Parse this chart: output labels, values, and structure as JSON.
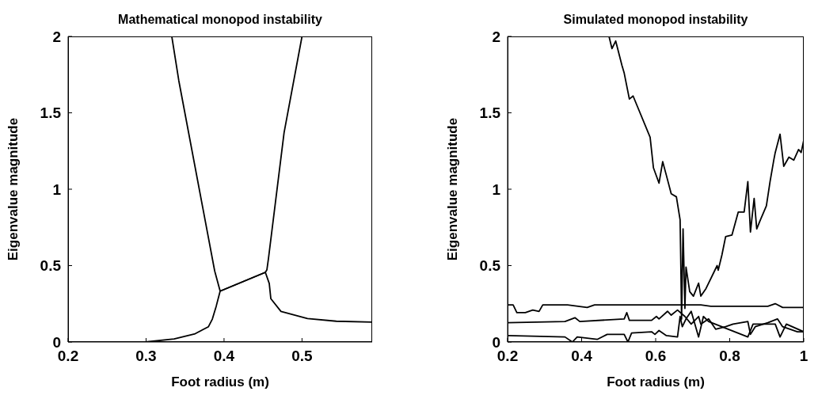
{
  "chart_data": [
    {
      "type": "line",
      "title": "Mathematical monopod instability",
      "xlabel": "Foot radius (m)",
      "ylabel": "Eigenvalue magnitude",
      "xlim": [
        0.2,
        0.59
      ],
      "ylim": [
        0,
        2
      ],
      "xticks": [
        0.2,
        0.3,
        0.4,
        0.5
      ],
      "yticks": [
        0,
        0.5,
        1,
        1.5,
        2
      ],
      "series": [
        {
          "color": "#000000",
          "x": [
            0.333,
            0.342,
            0.388,
            0.395,
            0.453,
            0.455,
            0.457,
            0.477,
            0.5
          ],
          "values": [
            2,
            1.71,
            0.465,
            0.333,
            0.456,
            0.473,
            0.547,
            1.37,
            2
          ]
        },
        {
          "color": "#000000",
          "x": [
            0.2,
            0.299,
            0.336,
            0.363,
            0.38,
            0.385,
            0.39,
            0.395,
            0.453,
            0.458,
            0.46,
            0.473,
            0.507,
            0.544,
            0.59
          ],
          "values": [
            0,
            0,
            0.02,
            0.054,
            0.1,
            0.15,
            0.235,
            0.333,
            0.456,
            0.383,
            0.284,
            0.2,
            0.153,
            0.136,
            0.13
          ]
        }
      ]
    },
    {
      "type": "line",
      "title": "Simulated monopod instability",
      "xlabel": "Foot radius (m)",
      "ylabel": "Eigenvalue magnitude",
      "xlim": [
        0.2,
        1
      ],
      "ylim": [
        0,
        2
      ],
      "xticks": [
        0.2,
        0.4,
        0.6,
        0.8,
        1
      ],
      "yticks": [
        0,
        0.5,
        1,
        1.5,
        2
      ],
      "series": [
        {
          "color": "#000000",
          "x": [
            0.474,
            0.482,
            0.492,
            0.509,
            0.515,
            0.529,
            0.539,
            0.585,
            0.594,
            0.609,
            0.619,
            0.629,
            0.642,
            0.656,
            0.666,
            0.668,
            0.67,
            0.674,
            0.679,
            0.682,
            0.692,
            0.702,
            0.716,
            0.722,
            0.736,
            0.766,
            0.769,
            0.779,
            0.789,
            0.806,
            0.823,
            0.839,
            0.849,
            0.856,
            0.866,
            0.873,
            0.883,
            0.899,
            0.909,
            0.919,
            0.923,
            0.936,
            0.946,
            0.96,
            0.973,
            0.986,
            0.993,
            1.0
          ],
          "values": [
            2,
            1.92,
            1.97,
            1.81,
            1.76,
            1.59,
            1.61,
            1.34,
            1.14,
            1.04,
            1.18,
            1.09,
            0.97,
            0.95,
            0.8,
            0.5,
            0.15,
            0.74,
            0.22,
            0.49,
            0.33,
            0.3,
            0.385,
            0.3,
            0.35,
            0.5,
            0.47,
            0.57,
            0.69,
            0.7,
            0.85,
            0.85,
            1.05,
            0.72,
            0.94,
            0.74,
            0.8,
            0.89,
            1.05,
            1.19,
            1.24,
            1.36,
            1.15,
            1.21,
            1.19,
            1.26,
            1.24,
            1.32
          ]
        },
        {
          "color": "#000000",
          "x": [
            0.2,
            0.215,
            0.225,
            0.248,
            0.268,
            0.285,
            0.295,
            0.362,
            0.415,
            0.435,
            0.602,
            0.722,
            0.749,
            0.903,
            0.923,
            0.943,
            1.0
          ],
          "values": [
            0.243,
            0.243,
            0.192,
            0.192,
            0.209,
            0.2,
            0.243,
            0.243,
            0.226,
            0.243,
            0.243,
            0.243,
            0.234,
            0.234,
            0.251,
            0.226,
            0.226
          ]
        },
        {
          "color": "#000000",
          "x": [
            0.2,
            0.355,
            0.382,
            0.395,
            0.515,
            0.522,
            0.529,
            0.589,
            0.602,
            0.609,
            0.632,
            0.642,
            0.659,
            0.679,
            0.696,
            0.716,
            0.722,
            0.743,
            0.762,
            0.789,
            0.809,
            0.849,
            0.856,
            0.869,
            0.903,
            0.929,
            0.943,
            0.983,
            1.0
          ],
          "values": [
            0.126,
            0.134,
            0.159,
            0.134,
            0.151,
            0.192,
            0.142,
            0.142,
            0.167,
            0.151,
            0.201,
            0.176,
            0.209,
            0.167,
            0.117,
            0.167,
            0.117,
            0.151,
            0.084,
            0.1,
            0.117,
            0.134,
            0.05,
            0.1,
            0.126,
            0.151,
            0.1,
            0.067,
            0.067
          ]
        },
        {
          "color": "#000000",
          "x": [
            0.2,
            0.355,
            0.375,
            0.388,
            0.442,
            0.469,
            0.515,
            0.525,
            0.535,
            0.589,
            0.598,
            0.609,
            0.629,
            0.659,
            0.666,
            0.672,
            0.682,
            0.696,
            0.716,
            0.729,
            0.743,
            0.849,
            0.863,
            0.923,
            0.936,
            0.953,
            1.0
          ],
          "values": [
            0.042,
            0.033,
            0,
            0.033,
            0.017,
            0.05,
            0.05,
            0,
            0.059,
            0.067,
            0.05,
            0.075,
            0.042,
            0.033,
            0.167,
            0.1,
            0.151,
            0.201,
            0.033,
            0.167,
            0.134,
            0.033,
            0.117,
            0.117,
            0.033,
            0.117,
            0.067
          ]
        }
      ]
    }
  ]
}
